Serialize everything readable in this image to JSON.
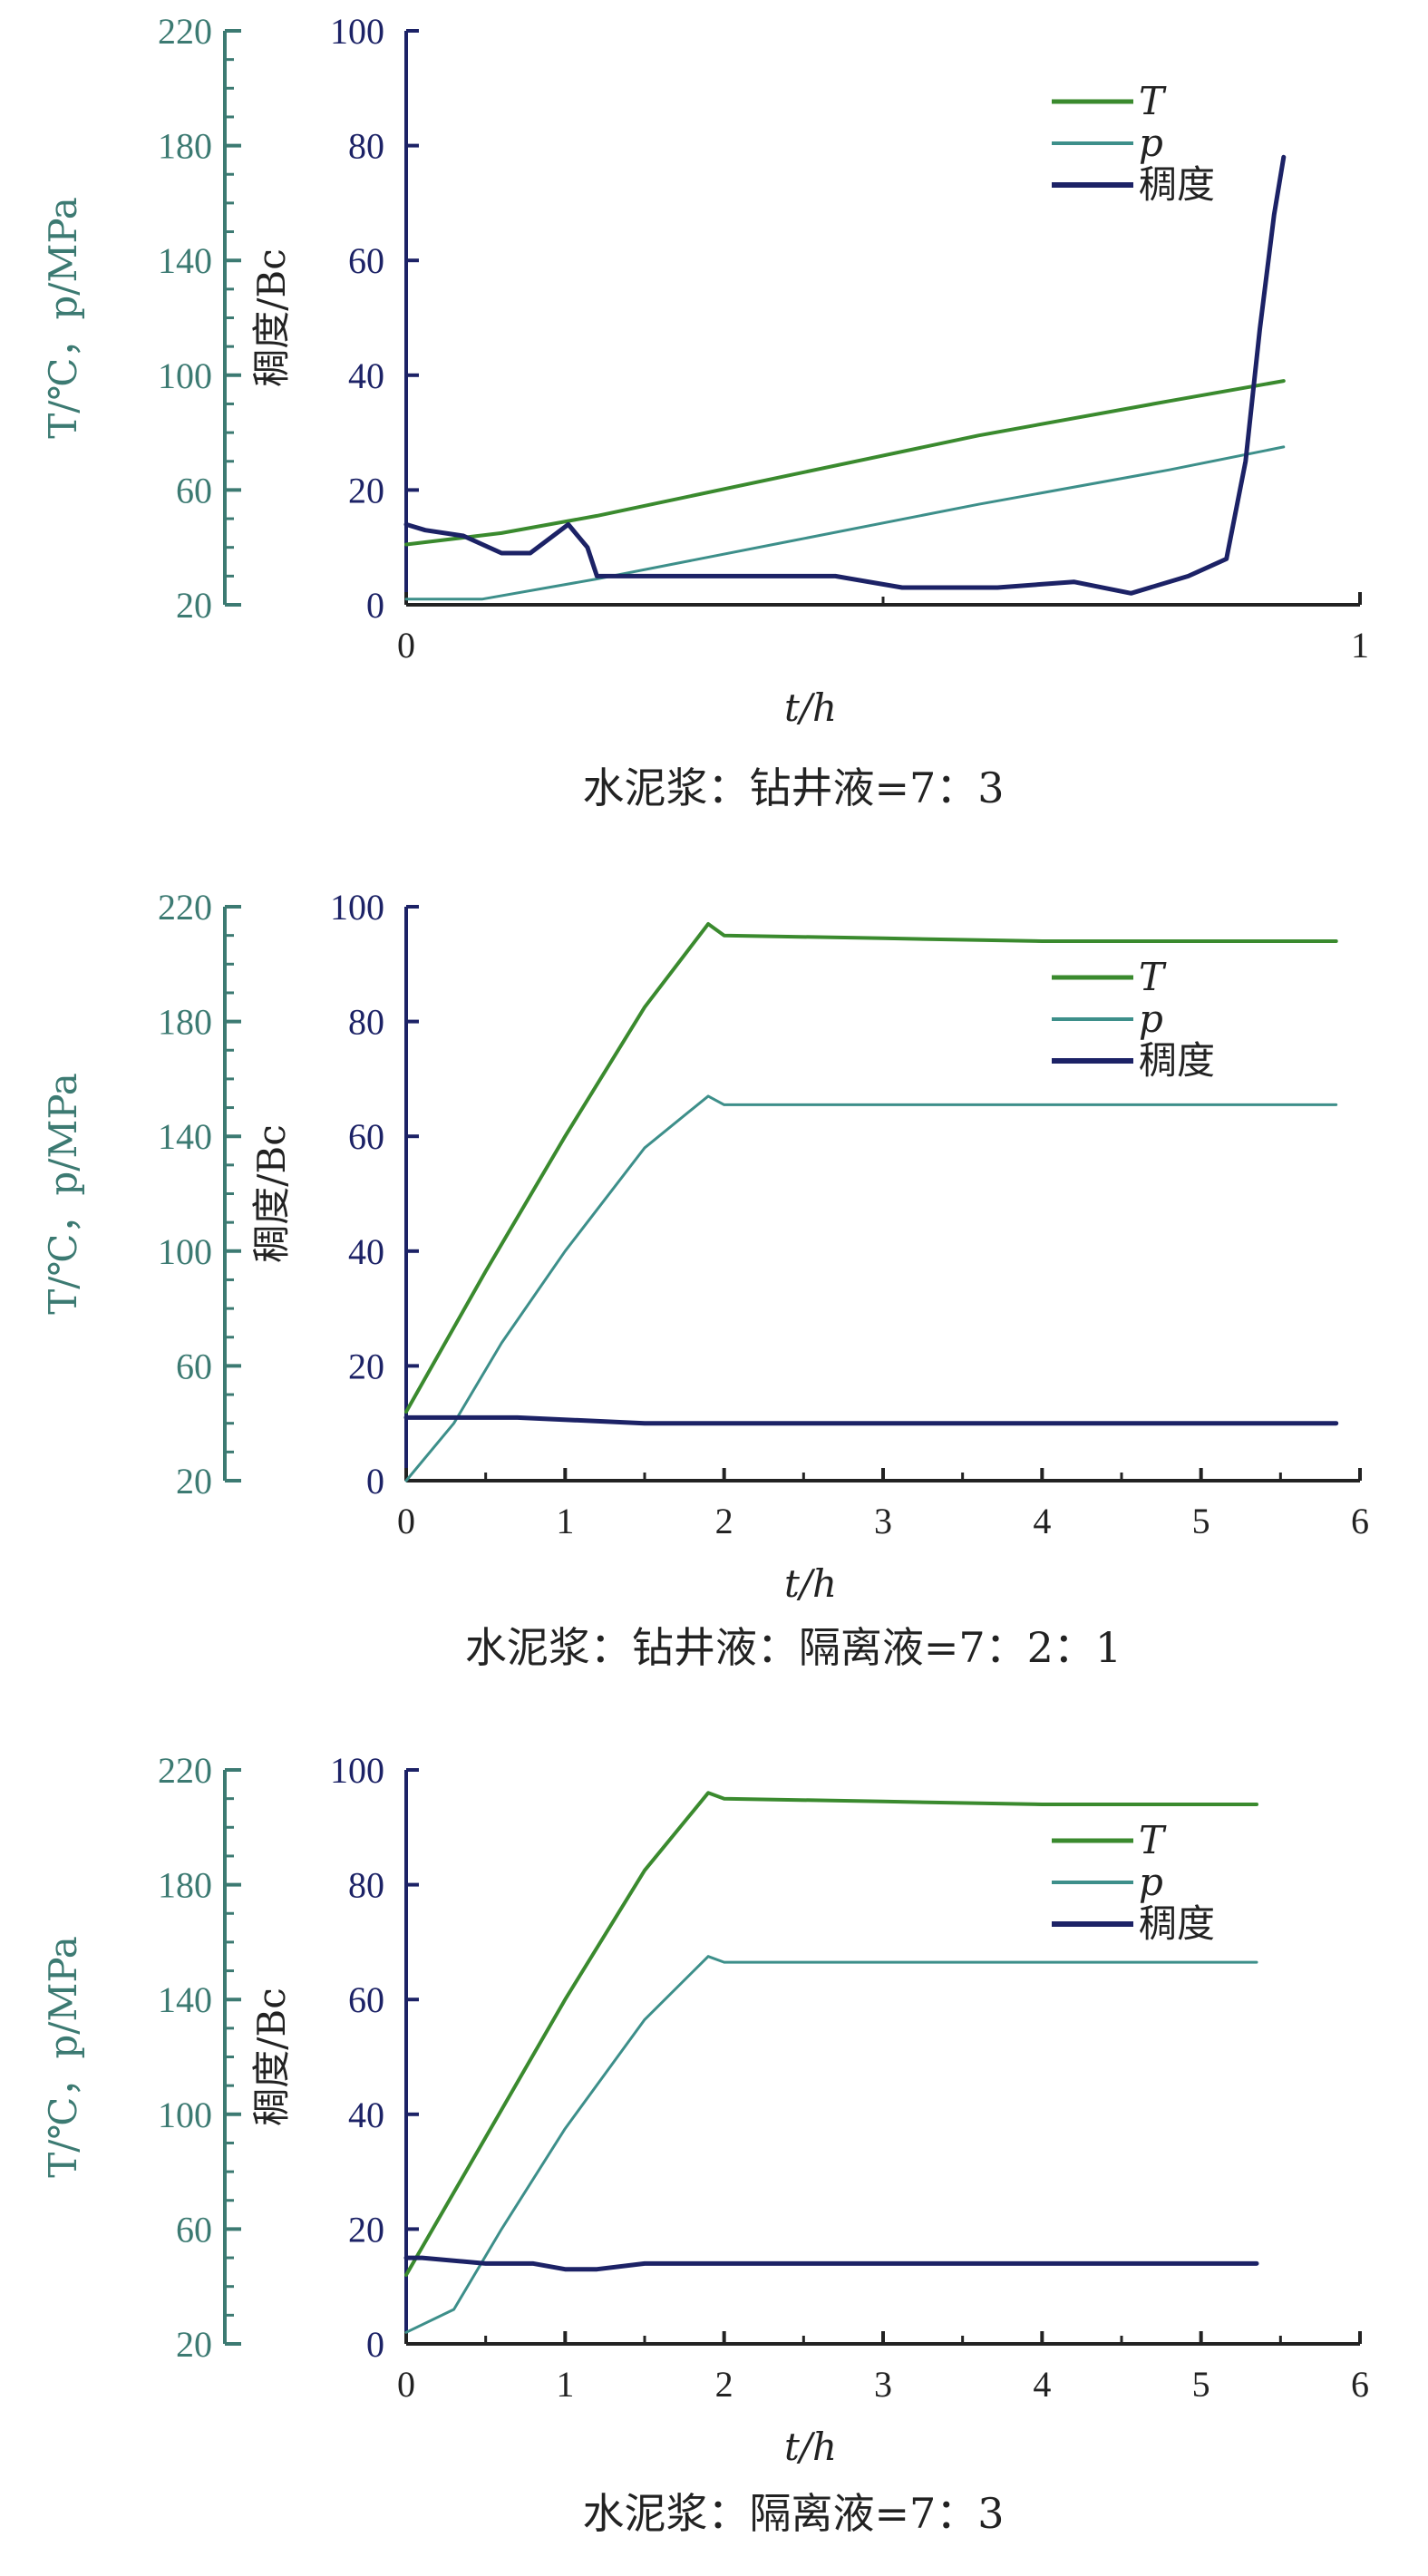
{
  "colors": {
    "T": "#3a8a2e",
    "p": "#3d8f8a",
    "consistency": "#1c2266",
    "left_axis": "#3c7a72",
    "mid_axis": "#1c2266",
    "text": "#222222"
  },
  "chart_data": [
    {
      "type": "line",
      "caption": "水泥浆：钻井液=7：3",
      "xlabel": "t/h",
      "ylabel_left": "T/℃，p/MPa",
      "ylabel_right": "稠度/Bc",
      "xlim": [
        0,
        1
      ],
      "x_ticks": [
        "0",
        "1"
      ],
      "y_left_lim": [
        20,
        220
      ],
      "y_left_ticks": [
        "20",
        "60",
        "100",
        "140",
        "180",
        "220"
      ],
      "y_mid_lim": [
        0,
        100
      ],
      "y_mid_ticks": [
        "0",
        "20",
        "40",
        "60",
        "80",
        "100"
      ],
      "legend_placement": "top-right",
      "series": [
        {
          "name": "T",
          "color_key": "T",
          "x": [
            0,
            0.1,
            0.2,
            0.4,
            0.6,
            0.8,
            0.92
          ],
          "y": [
            41,
            45,
            51,
            65,
            79,
            91,
            98
          ]
        },
        {
          "name": "p",
          "color_key": "p",
          "x": [
            0,
            0.08,
            0.2,
            0.4,
            0.6,
            0.8,
            0.92
          ],
          "y": [
            22,
            22,
            29,
            42,
            55,
            67,
            75
          ]
        },
        {
          "name": "稠度",
          "color_key": "consistency",
          "x": [
            0,
            0.02,
            0.06,
            0.1,
            0.13,
            0.17,
            0.19,
            0.2,
            0.25,
            0.35,
            0.45,
            0.52,
            0.62,
            0.7,
            0.76,
            0.82,
            0.86,
            0.88,
            0.895,
            0.91,
            0.92
          ],
          "y": [
            14,
            13,
            12,
            9,
            9,
            14,
            10,
            5,
            5,
            5,
            5,
            3,
            3,
            4,
            2,
            5,
            8,
            25,
            48,
            68,
            78
          ]
        }
      ]
    },
    {
      "type": "line",
      "caption": "水泥浆：钻井液：隔离液=7：2：1",
      "xlabel": "t/h",
      "ylabel_left": "T/℃，p/MPa",
      "ylabel_right": "稠度/Bc",
      "xlim": [
        0,
        6
      ],
      "x_ticks": [
        "0",
        "1",
        "2",
        "3",
        "4",
        "5",
        "6"
      ],
      "y_left_lim": [
        20,
        220
      ],
      "y_left_ticks": [
        "20",
        "60",
        "100",
        "140",
        "180",
        "220"
      ],
      "y_mid_lim": [
        0,
        100
      ],
      "y_mid_ticks": [
        "0",
        "20",
        "40",
        "60",
        "80",
        "100"
      ],
      "legend_placement": "top-right",
      "series": [
        {
          "name": "T",
          "color_key": "T",
          "x": [
            0,
            0.5,
            1.0,
            1.5,
            1.9,
            2.0,
            3,
            4,
            5,
            5.85
          ],
          "y": [
            44,
            93,
            140,
            185,
            214,
            210,
            209,
            208,
            208,
            208
          ]
        },
        {
          "name": "p",
          "color_key": "p",
          "x": [
            0,
            0.3,
            0.6,
            1.0,
            1.5,
            1.9,
            2.0,
            3,
            4,
            5,
            5.85
          ],
          "y": [
            20,
            40,
            68,
            100,
            136,
            154,
            151,
            151,
            151,
            151,
            151
          ]
        },
        {
          "name": "稠度",
          "color_key": "consistency",
          "x": [
            0,
            0.3,
            0.7,
            1.5,
            2,
            3,
            4,
            5,
            5.85
          ],
          "y": [
            11,
            11,
            11,
            10,
            10,
            10,
            10,
            10,
            10
          ]
        }
      ]
    },
    {
      "type": "line",
      "caption": "水泥浆：隔离液=7：3",
      "xlabel": "t/h",
      "ylabel_left": "T/℃，p/MPa",
      "ylabel_right": "稠度/Bc",
      "xlim": [
        0,
        6
      ],
      "x_ticks": [
        "0",
        "1",
        "2",
        "3",
        "4",
        "5",
        "6"
      ],
      "y_left_lim": [
        20,
        220
      ],
      "y_left_ticks": [
        "20",
        "60",
        "100",
        "140",
        "180",
        "220"
      ],
      "y_mid_lim": [
        0,
        100
      ],
      "y_mid_ticks": [
        "0",
        "20",
        "40",
        "60",
        "80",
        "100"
      ],
      "legend_placement": "top-right",
      "series": [
        {
          "name": "T",
          "color_key": "T",
          "x": [
            0,
            0.5,
            1.0,
            1.5,
            1.9,
            2.0,
            3,
            4,
            5,
            5.35
          ],
          "y": [
            44,
            92,
            140,
            185,
            212,
            210,
            209,
            208,
            208,
            208
          ]
        },
        {
          "name": "p",
          "color_key": "p",
          "x": [
            0,
            0.3,
            0.6,
            1.0,
            1.5,
            1.9,
            2.0,
            3,
            4,
            5,
            5.35
          ],
          "y": [
            24,
            32,
            60,
            95,
            133,
            155,
            153,
            153,
            153,
            153,
            153
          ]
        },
        {
          "name": "稠度",
          "color_key": "consistency",
          "x": [
            0,
            0.1,
            0.5,
            0.8,
            1.0,
            1.2,
            1.5,
            2,
            3,
            4,
            5,
            5.35
          ],
          "y": [
            15,
            15,
            14,
            14,
            13,
            13,
            14,
            14,
            14,
            14,
            14,
            14
          ]
        }
      ]
    }
  ]
}
